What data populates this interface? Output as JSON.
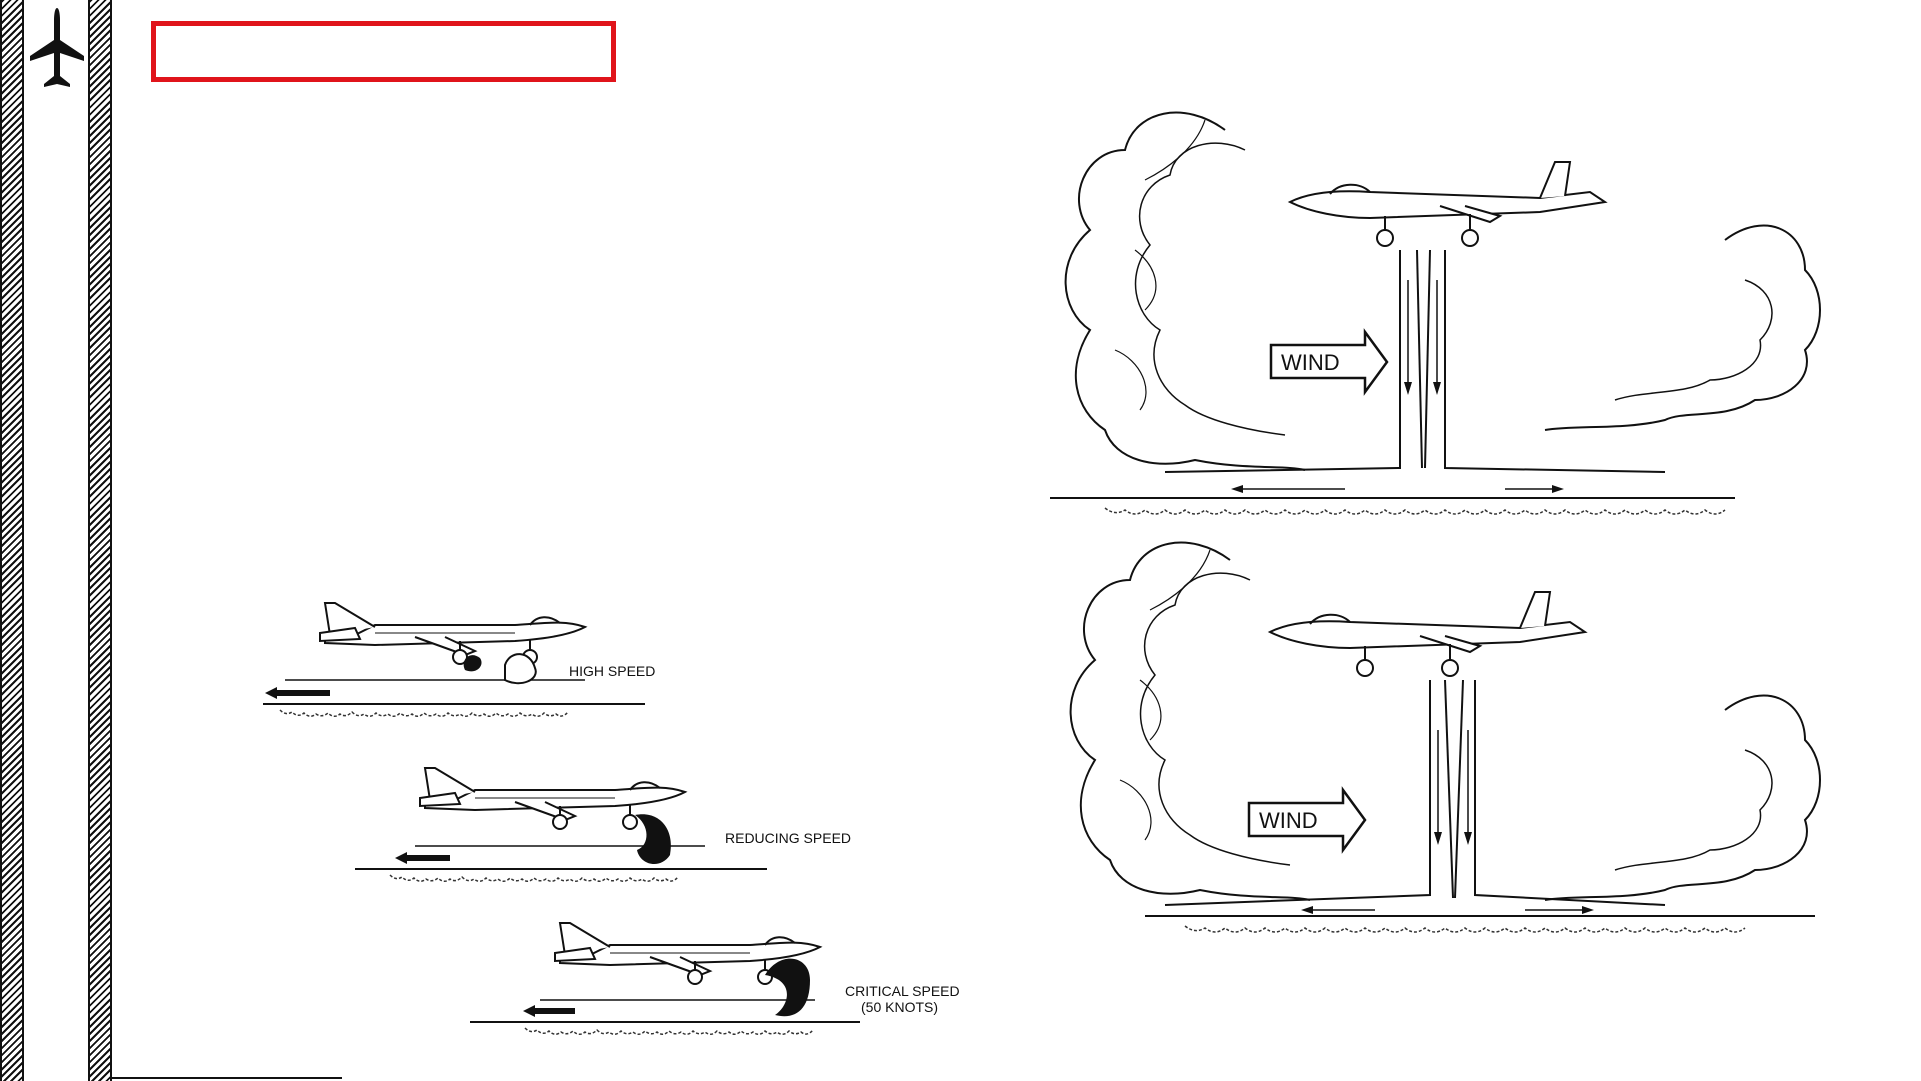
{
  "header": {
    "title": ""
  },
  "sidebar": {
    "icon": "jet-aircraft-icon"
  },
  "figure_left": {
    "labels": {
      "high_speed": "HIGH SPEED",
      "reducing_speed": "REDUCING SPEED",
      "critical_speed": "CRITICAL SPEED",
      "critical_speed_note": "(50 KNOTS)"
    }
  },
  "figure_right": {
    "top_wind_label": "WIND",
    "bottom_wind_label": "WIND"
  }
}
